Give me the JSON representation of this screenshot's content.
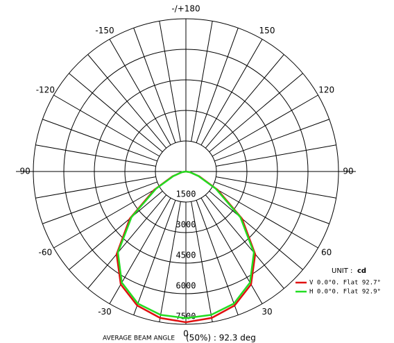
{
  "chart_data": {
    "type": "polar",
    "angle_ticks": [
      {
        "value": 180,
        "label": "-/+180"
      },
      150,
      120,
      90,
      60,
      30,
      0,
      -30,
      -60,
      -90,
      -120,
      -150
    ],
    "rlim": [
      0,
      7500
    ],
    "rticks": [
      1500,
      3000,
      4500,
      6000,
      7500
    ],
    "x": [
      -90,
      -80,
      -70,
      -60,
      -50,
      -40,
      -30,
      -20,
      -10,
      0,
      10,
      20,
      30,
      40,
      50,
      60,
      70,
      80,
      90
    ],
    "series": [
      {
        "name": "V  0.0°0. Flat 92.7°",
        "symbol": "V",
        "color": "#e01010",
        "values": [
          0,
          200,
          700,
          1800,
          3600,
          5300,
          6400,
          7000,
          7300,
          7400,
          7300,
          7000,
          6400,
          5300,
          3600,
          1800,
          700,
          200,
          0
        ]
      },
      {
        "name": "H  0.0°0. Flat 92.9°",
        "symbol": "H",
        "color": "#22dd22",
        "values": [
          0,
          200,
          650,
          1700,
          3500,
          5200,
          6300,
          6900,
          7150,
          7200,
          7150,
          6900,
          6300,
          5200,
          3500,
          1700,
          650,
          200,
          0
        ]
      }
    ],
    "unit_label": "UNIT :",
    "unit": "cd",
    "footer_label": "AVERAGE BEAM ANGLE",
    "footer_value": "(50%) : 92.3 deg"
  }
}
